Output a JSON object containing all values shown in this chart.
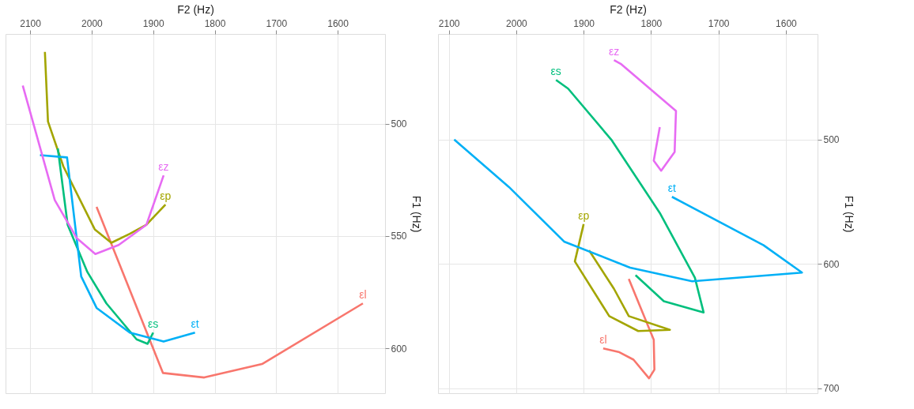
{
  "chart_data": [
    {
      "type": "line",
      "xlabel": "F2 (Hz)",
      "ylabel": "F1 (Hz)",
      "xlim": [
        2140,
        1523
      ],
      "ylim": [
        620,
        460
      ],
      "xticks": [
        2100,
        2000,
        1900,
        1800,
        1700,
        1600
      ],
      "yticks": [
        500,
        550,
        600
      ],
      "grid": true,
      "legend": false,
      "series": [
        {
          "name": "εl",
          "color": "#f8766d",
          "x": [
            1992,
            1884,
            1817,
            1723,
            1559
          ],
          "values": [
            537,
            611,
            613,
            607,
            580
          ]
        },
        {
          "name": "εp",
          "color": "#a3a500",
          "x": [
            2076,
            2071,
            2046,
            1995,
            1968,
            1938,
            1911,
            1880
          ],
          "values": [
            468,
            499,
            519,
            547,
            553,
            549,
            545,
            536
          ]
        },
        {
          "name": "εs",
          "color": "#00bf7d",
          "x": [
            2055,
            2039,
            2007,
            1976,
            1927,
            1909,
            1900
          ],
          "values": [
            511,
            545,
            566,
            580,
            596,
            598,
            593
          ]
        },
        {
          "name": "εt",
          "color": "#00b0f6",
          "x": [
            2084,
            2040,
            2017,
            1992,
            1938,
            1883,
            1832
          ],
          "values": [
            514,
            515,
            568,
            582,
            593,
            597,
            593
          ]
        },
        {
          "name": "εz",
          "color": "#e76bf3",
          "x": [
            2112,
            2060,
            2024,
            1994,
            1956,
            1911,
            1883
          ],
          "values": [
            483,
            534,
            551,
            558,
            554,
            545,
            523
          ]
        }
      ]
    },
    {
      "type": "line",
      "xlabel": "F2 (Hz)",
      "ylabel": "F1 (Hz)",
      "xlim": [
        2116,
        1553
      ],
      "ylim": [
        704,
        415
      ],
      "xticks": [
        2100,
        2000,
        1900,
        1800,
        1700,
        1600
      ],
      "yticks": [
        500,
        600,
        700
      ],
      "grid": true,
      "legend": false,
      "series": [
        {
          "name": "εl",
          "color": "#f8766d",
          "x": [
            1833,
            1796,
            1795,
            1803,
            1826,
            1847,
            1871
          ],
          "values": [
            612,
            661,
            685,
            692,
            677,
            671,
            668
          ]
        },
        {
          "name": "εp",
          "color": "#a3a500",
          "x": [
            1892,
            1855,
            1833,
            1772,
            1819,
            1862,
            1913,
            1900
          ],
          "values": [
            589,
            620,
            642,
            653,
            654,
            642,
            598,
            568
          ]
        },
        {
          "name": "εs",
          "color": "#00bf7d",
          "x": [
            1823,
            1781,
            1722,
            1735,
            1787,
            1859,
            1923,
            1941
          ],
          "values": [
            609,
            630,
            639,
            611,
            559,
            500,
            459,
            452
          ]
        },
        {
          "name": "εt",
          "color": "#00b0f6",
          "x": [
            2092,
            2011,
            1929,
            1831,
            1739,
            1576,
            1633,
            1769
          ],
          "values": [
            500,
            538,
            582,
            603,
            614,
            607,
            585,
            546
          ]
        },
        {
          "name": "εz",
          "color": "#e76bf3",
          "x": [
            1787,
            1796,
            1785,
            1765,
            1763,
            1845,
            1855
          ],
          "values": [
            490,
            517,
            525,
            510,
            477,
            439,
            436
          ]
        }
      ]
    }
  ]
}
